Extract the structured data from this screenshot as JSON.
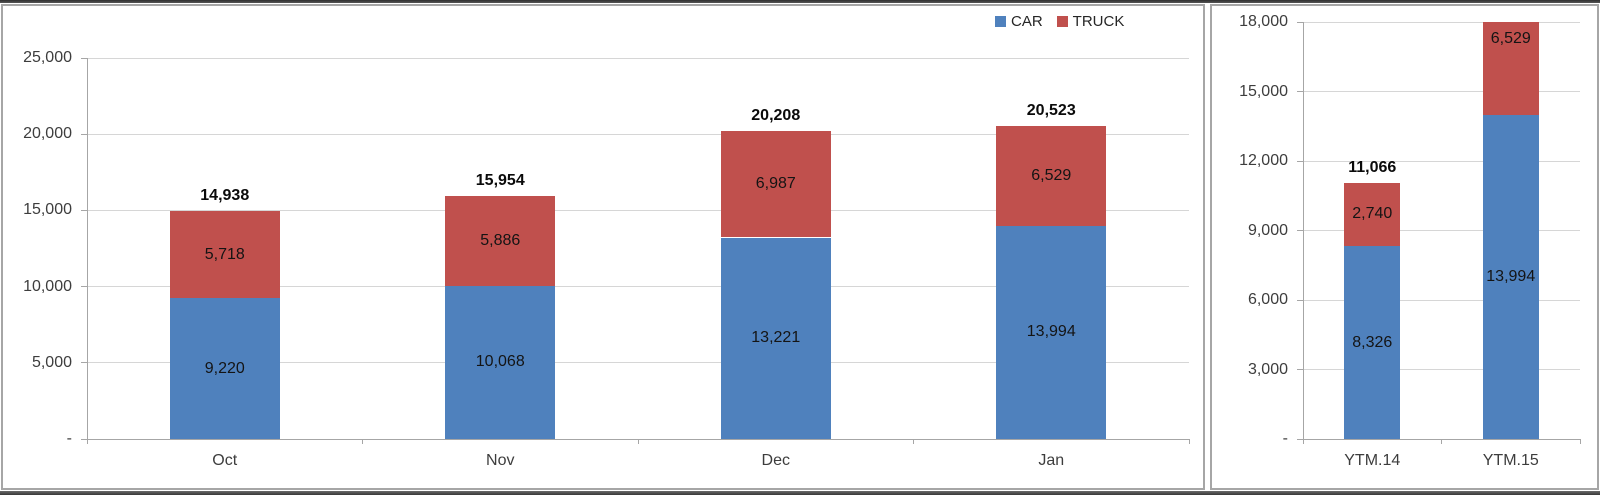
{
  "decor": {
    "edge_strip_color": "#3f3f3f",
    "panel_border_color": "#a6a6a6",
    "gridline_color": "#d6d6d6",
    "axis_color": "#a6a6a6"
  },
  "legend": {
    "position": "top-right",
    "entries": [
      {
        "label": "CAR",
        "color": "#4f81bd",
        "swatch_icon": "blue-square"
      },
      {
        "label": "TRUCK",
        "color": "#c0504d",
        "swatch_icon": "red-square"
      }
    ]
  },
  "chart_data": [
    {
      "id": "monthly",
      "type": "bar",
      "stacked": true,
      "title": "",
      "xlabel": "",
      "ylabel": "",
      "categories": [
        "Oct",
        "Nov",
        "Dec",
        "Jan"
      ],
      "series": [
        {
          "name": "CAR",
          "color": "#4f81bd",
          "values": [
            9220,
            10068,
            13221,
            13994
          ]
        },
        {
          "name": "TRUCK",
          "color": "#c0504d",
          "values": [
            5718,
            5886,
            6987,
            6529
          ]
        }
      ],
      "segment_labels": [
        [
          "9,220",
          "10,068",
          "13,221",
          "13,994"
        ],
        [
          "5,718",
          "5,886",
          "6,987",
          "6,529"
        ]
      ],
      "totals": [
        14938,
        15954,
        20208,
        20523
      ],
      "total_labels": [
        "14,938",
        "15,954",
        "20,208",
        "20,523"
      ],
      "ylim": [
        0,
        25000
      ],
      "ytick_step": 5000,
      "ytick_labels": [
        "-",
        "5,000",
        "10,000",
        "15,000",
        "20,000",
        "25,000"
      ],
      "grid": true,
      "legend_position": "top-right"
    },
    {
      "id": "ytm",
      "type": "bar",
      "stacked": true,
      "title": "",
      "xlabel": "",
      "ylabel": "",
      "categories": [
        "YTM.14",
        "YTM.15"
      ],
      "series": [
        {
          "name": "CAR",
          "color": "#4f81bd",
          "values": [
            8326,
            13994
          ]
        },
        {
          "name": "TRUCK",
          "color": "#c0504d",
          "values": [
            2740,
            6529
          ]
        }
      ],
      "segment_labels": [
        [
          "8,326",
          "13,994"
        ],
        [
          "2,740",
          "6,529"
        ]
      ],
      "totals": [
        11066
      ],
      "total_labels": [
        "11,066",
        ""
      ],
      "ylim": [
        0,
        18000
      ],
      "ytick_step": 3000,
      "ytick_labels": [
        "-",
        "3,000",
        "6,000",
        "9,000",
        "12,000",
        "15,000",
        "18,000"
      ],
      "grid": true,
      "overflow_clipped": true,
      "legend_position": "none"
    }
  ]
}
